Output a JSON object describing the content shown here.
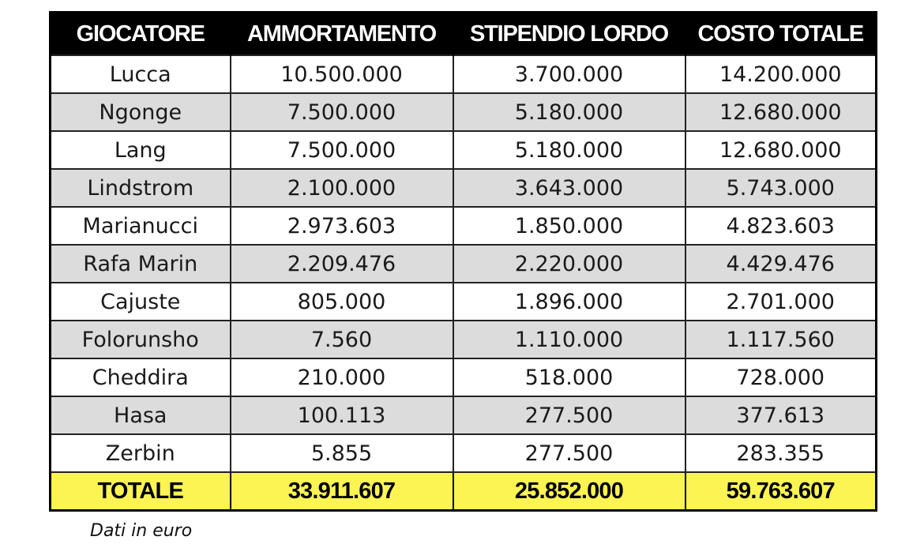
{
  "table": {
    "headers": [
      "GIOCATORE",
      "AMMORTAMENTO",
      "STIPENDIO LORDO",
      "COSTO TOTALE"
    ],
    "rows": [
      {
        "player": "Lucca",
        "amortization": "10.500.000",
        "gross_salary": "3.700.000",
        "total_cost": "14.200.000"
      },
      {
        "player": "Ngonge",
        "amortization": "7.500.000",
        "gross_salary": "5.180.000",
        "total_cost": "12.680.000"
      },
      {
        "player": "Lang",
        "amortization": "7.500.000",
        "gross_salary": "5.180.000",
        "total_cost": "12.680.000"
      },
      {
        "player": "Lindstrom",
        "amortization": "2.100.000",
        "gross_salary": "3.643.000",
        "total_cost": "5.743.000"
      },
      {
        "player": "Marianucci",
        "amortization": "2.973.603",
        "gross_salary": "1.850.000",
        "total_cost": "4.823.603"
      },
      {
        "player": "Rafa Marin",
        "amortization": "2.209.476",
        "gross_salary": "2.220.000",
        "total_cost": "4.429.476"
      },
      {
        "player": "Cajuste",
        "amortization": "805.000",
        "gross_salary": "1.896.000",
        "total_cost": "2.701.000"
      },
      {
        "player": "Folorunsho",
        "amortization": "7.560",
        "gross_salary": "1.110.000",
        "total_cost": "1.117.560"
      },
      {
        "player": "Cheddira",
        "amortization": "210.000",
        "gross_salary": "518.000",
        "total_cost": "728.000"
      },
      {
        "player": "Hasa",
        "amortization": "100.113",
        "gross_salary": "277.500",
        "total_cost": "377.613"
      },
      {
        "player": "Zerbin",
        "amortization": "5.855",
        "gross_salary": "277.500",
        "total_cost": "283.355"
      }
    ],
    "total": {
      "label": "TOTALE",
      "amortization": "33.911.607",
      "gross_salary": "25.852.000",
      "total_cost": "59.763.607"
    }
  },
  "footnote": "Dati in euro",
  "colors": {
    "header_bg": "#000000",
    "header_text": "#ffffff",
    "row_alt_bg": "#dcdcdc",
    "total_bg": "#fcf452"
  }
}
